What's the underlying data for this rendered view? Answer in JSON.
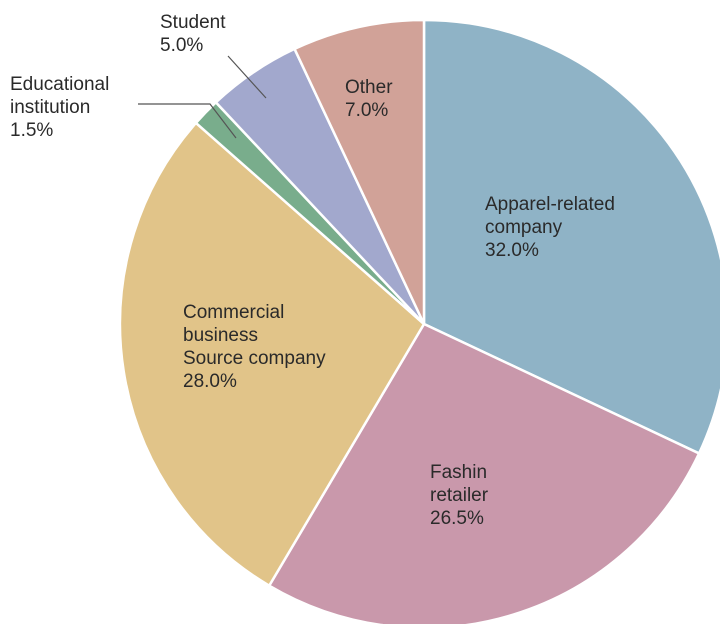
{
  "chart_data": {
    "type": "pie",
    "title": "",
    "start_angle_deg": 0,
    "direction": "clockwise",
    "slices": [
      {
        "key": "apparel-related-company",
        "label_lines": [
          "Apparel-related",
          "company"
        ],
        "value": 32.0,
        "value_label": "32.0%",
        "color": "#8fb3c6"
      },
      {
        "key": "fashin-retailer",
        "label_lines": [
          "Fashin",
          "retailer"
        ],
        "value": 26.5,
        "value_label": "26.5%",
        "color": "#c998ab"
      },
      {
        "key": "commercial-business-source-company",
        "label_lines": [
          "Commercial",
          "business",
          "Source company"
        ],
        "value": 28.0,
        "value_label": "28.0%",
        "color": "#e1c489"
      },
      {
        "key": "educational-institution",
        "label_lines": [
          "Educational",
          "institution"
        ],
        "value": 1.5,
        "value_label": "1.5%",
        "color": "#79ad8c"
      },
      {
        "key": "student",
        "label_lines": [
          "Student"
        ],
        "value": 5.0,
        "value_label": "5.0%",
        "color": "#a2a8cd"
      },
      {
        "key": "other",
        "label_lines": [
          "Other"
        ],
        "value": 7.0,
        "value_label": "7.0%",
        "color": "#d1a298"
      }
    ]
  }
}
